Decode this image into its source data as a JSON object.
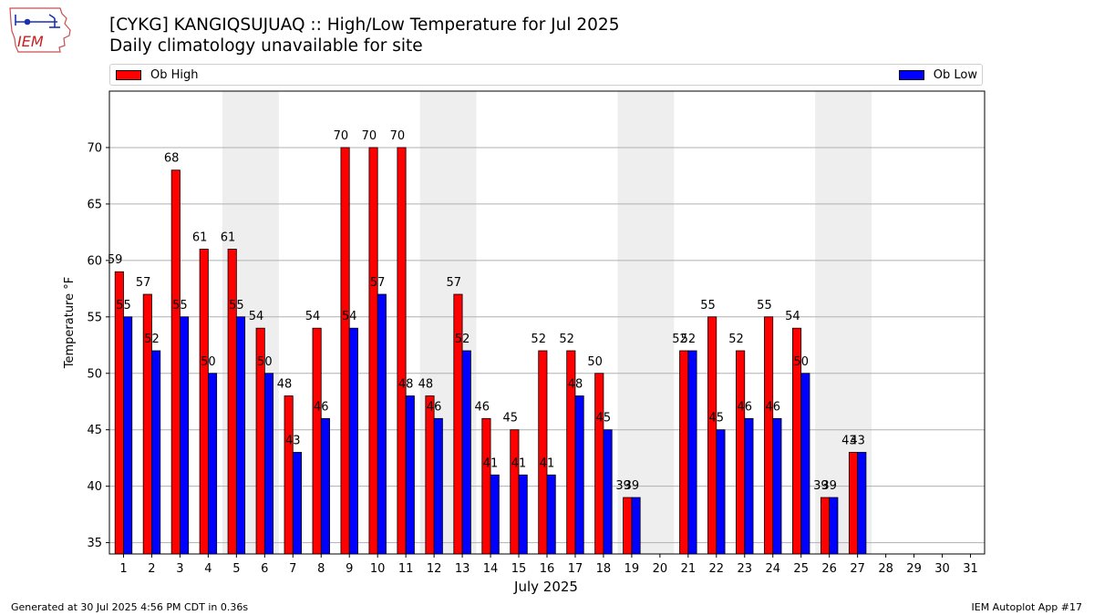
{
  "header": {
    "title": "[CYKG] KANGIQSUJUAQ :: High/Low Temperature for Jul 2025",
    "subtitle": "Daily climatology unavailable for site"
  },
  "logo": {
    "text": "IEM"
  },
  "footer": {
    "left": "Generated at 30 Jul 2025 4:56 PM CDT in 0.36s",
    "right": "IEM Autoplot App #17"
  },
  "chart_data": {
    "type": "bar",
    "title": "[CYKG] KANGIQSUJUAQ :: High/Low Temperature for Jul 2025",
    "subtitle": "Daily climatology unavailable for site",
    "xlabel": "July 2025",
    "ylabel": "Temperature °F",
    "categories": [
      "1",
      "2",
      "3",
      "4",
      "5",
      "6",
      "7",
      "8",
      "9",
      "10",
      "11",
      "12",
      "13",
      "14",
      "15",
      "16",
      "17",
      "18",
      "19",
      "20",
      "21",
      "22",
      "23",
      "24",
      "25",
      "26",
      "27",
      "28",
      "29",
      "30",
      "31"
    ],
    "series": [
      {
        "name": "Ob High",
        "color": "#ff0000",
        "values": [
          59,
          57,
          68,
          61,
          61,
          54,
          48,
          54,
          70,
          70,
          70,
          48,
          57,
          46,
          45,
          52,
          52,
          50,
          39,
          null,
          52,
          55,
          52,
          55,
          54,
          39,
          43,
          null,
          null,
          null,
          null
        ],
        "labels": [
          "59",
          "57",
          "68",
          "61",
          "61",
          "54",
          "48",
          "54",
          "70",
          "70",
          "70",
          "48",
          "57",
          "46",
          "45",
          "52",
          "52",
          "50",
          "39",
          "",
          "52",
          "55",
          "52",
          "55",
          "54",
          "39",
          "43",
          "",
          "",
          "",
          ""
        ]
      },
      {
        "name": "Ob Low",
        "color": "#0000ff",
        "values": [
          55,
          52,
          55,
          50,
          55,
          50,
          43,
          46,
          54,
          57,
          48,
          46,
          52,
          41,
          41,
          41,
          48,
          45,
          39,
          null,
          52,
          45,
          46,
          46,
          50,
          39,
          43,
          null,
          null,
          null,
          null
        ],
        "labels": [
          "55",
          "52",
          "55",
          "50",
          "55",
          "50",
          "43",
          "46",
          "54",
          "57",
          "48",
          "46",
          "52",
          "41",
          "41",
          "41",
          "48",
          "45",
          "39",
          "",
          "52",
          "45",
          "46",
          "46",
          "50",
          "39",
          "43",
          "",
          "",
          "",
          ""
        ]
      }
    ],
    "ylim": [
      34,
      75
    ],
    "yticks": [
      35,
      40,
      45,
      50,
      55,
      60,
      65,
      70
    ],
    "shaded_ranges": [
      [
        5,
        6
      ],
      [
        12,
        13
      ],
      [
        19,
        20
      ],
      [
        26,
        27
      ]
    ],
    "grid": "horizontal",
    "legend": "top"
  }
}
